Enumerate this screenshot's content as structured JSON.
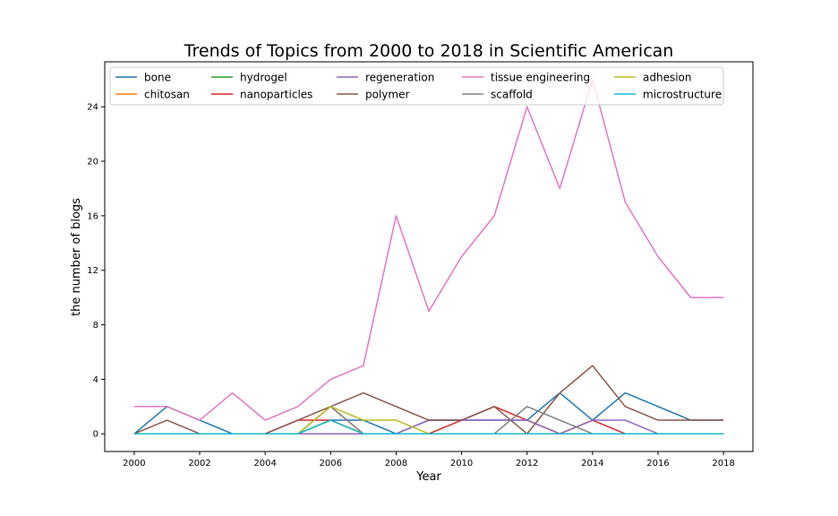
{
  "chart_data": {
    "type": "line",
    "title": "Trends of Topics from 2000 to 2018 in Scientific American",
    "xlabel": "Year",
    "ylabel": "the number of blogs",
    "x": [
      2000,
      2001,
      2002,
      2003,
      2004,
      2005,
      2006,
      2007,
      2008,
      2009,
      2010,
      2011,
      2012,
      2013,
      2014,
      2015,
      2016,
      2017,
      2018
    ],
    "xticks": [
      2000,
      2002,
      2004,
      2006,
      2008,
      2010,
      2012,
      2014,
      2016,
      2018
    ],
    "yticks": [
      0,
      4,
      8,
      12,
      16,
      20,
      24
    ],
    "xlim": [
      1999.1,
      2018.9
    ],
    "ylim": [
      -1.3,
      27.3
    ],
    "grid": false,
    "legend_position": "top",
    "series": [
      {
        "name": "bone",
        "color": "#1f77b4",
        "values": [
          0,
          2,
          1,
          0,
          0,
          0,
          1,
          1,
          0,
          1,
          1,
          1,
          1,
          3,
          1,
          3,
          2,
          1,
          1
        ]
      },
      {
        "name": "chitosan",
        "color": "#ff7f0e",
        "values": [
          0,
          0,
          0,
          0,
          0,
          0,
          2,
          0,
          0,
          0,
          0,
          0,
          0,
          0,
          0,
          0,
          0,
          0,
          0
        ]
      },
      {
        "name": "hydrogel",
        "color": "#2ca02c",
        "values": [
          0,
          0,
          0,
          0,
          0,
          0,
          1,
          0,
          0,
          0,
          0,
          0,
          0,
          0,
          0,
          0,
          0,
          0,
          0
        ]
      },
      {
        "name": "nanoparticles",
        "color": "#d62728",
        "values": [
          0,
          0,
          0,
          0,
          0,
          1,
          1,
          0,
          0,
          0,
          1,
          2,
          1,
          0,
          1,
          0,
          0,
          0,
          0
        ]
      },
      {
        "name": "regeneration",
        "color": "#9467bd",
        "values": [
          0,
          0,
          0,
          0,
          0,
          0,
          0,
          0,
          0,
          1,
          1,
          1,
          1,
          0,
          1,
          1,
          0,
          0,
          0
        ]
      },
      {
        "name": "polymer",
        "color": "#8c564b",
        "values": [
          0,
          1,
          0,
          0,
          0,
          1,
          2,
          3,
          2,
          1,
          1,
          2,
          0,
          3,
          5,
          2,
          1,
          1,
          1
        ]
      },
      {
        "name": "tissue engineering",
        "color": "#e377c2",
        "values": [
          2,
          2,
          1,
          3,
          1,
          2,
          4,
          5,
          16,
          9,
          13,
          16,
          24,
          18,
          26,
          17,
          13,
          10,
          10
        ]
      },
      {
        "name": "scaffold",
        "color": "#7f7f7f",
        "values": [
          0,
          0,
          0,
          0,
          0,
          0,
          2,
          0,
          0,
          0,
          0,
          0,
          2,
          1,
          0,
          0,
          0,
          0,
          0
        ]
      },
      {
        "name": "adhesion",
        "color": "#bcbd22",
        "values": [
          0,
          0,
          0,
          0,
          0,
          0,
          2,
          1,
          1,
          0,
          0,
          0,
          0,
          0,
          0,
          0,
          0,
          0,
          0
        ]
      },
      {
        "name": "microstructure",
        "color": "#17becf",
        "values": [
          0,
          0,
          0,
          0,
          0,
          0,
          1,
          0,
          0,
          0,
          0,
          0,
          0,
          0,
          0,
          0,
          0,
          0,
          0
        ]
      }
    ]
  }
}
